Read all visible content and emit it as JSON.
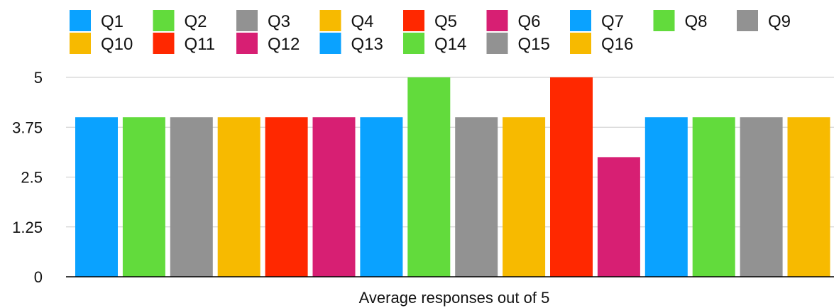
{
  "chart_data": {
    "type": "bar",
    "title": "",
    "xlabel": "Average responses out of 5",
    "ylabel": "",
    "ylim": [
      0,
      5
    ],
    "yticks": [
      "0",
      "1.25",
      "2.5",
      "3.75",
      "5"
    ],
    "legend_position": "top",
    "grid": true,
    "categories": [
      "Average responses out of 5"
    ],
    "series": [
      {
        "name": "Q1",
        "values": [
          4
        ],
        "color": "#0aa2ff"
      },
      {
        "name": "Q2",
        "values": [
          4
        ],
        "color": "#62db3c"
      },
      {
        "name": "Q3",
        "values": [
          4
        ],
        "color": "#929292"
      },
      {
        "name": "Q4",
        "values": [
          4
        ],
        "color": "#f7ba00"
      },
      {
        "name": "Q5",
        "values": [
          4
        ],
        "color": "#ff2800"
      },
      {
        "name": "Q6",
        "values": [
          4
        ],
        "color": "#d71f73"
      },
      {
        "name": "Q7",
        "values": [
          4
        ],
        "color": "#0aa2ff"
      },
      {
        "name": "Q8",
        "values": [
          5
        ],
        "color": "#62db3c"
      },
      {
        "name": "Q9",
        "values": [
          4
        ],
        "color": "#929292"
      },
      {
        "name": "Q10",
        "values": [
          4
        ],
        "color": "#f7ba00"
      },
      {
        "name": "Q11",
        "values": [
          5
        ],
        "color": "#ff2800"
      },
      {
        "name": "Q12",
        "values": [
          3
        ],
        "color": "#d71f73"
      },
      {
        "name": "Q13",
        "values": [
          4
        ],
        "color": "#0aa2ff"
      },
      {
        "name": "Q14",
        "values": [
          4
        ],
        "color": "#62db3c"
      },
      {
        "name": "Q15",
        "values": [
          4
        ],
        "color": "#929292"
      },
      {
        "name": "Q16",
        "values": [
          4
        ],
        "color": "#f7ba00"
      }
    ]
  }
}
